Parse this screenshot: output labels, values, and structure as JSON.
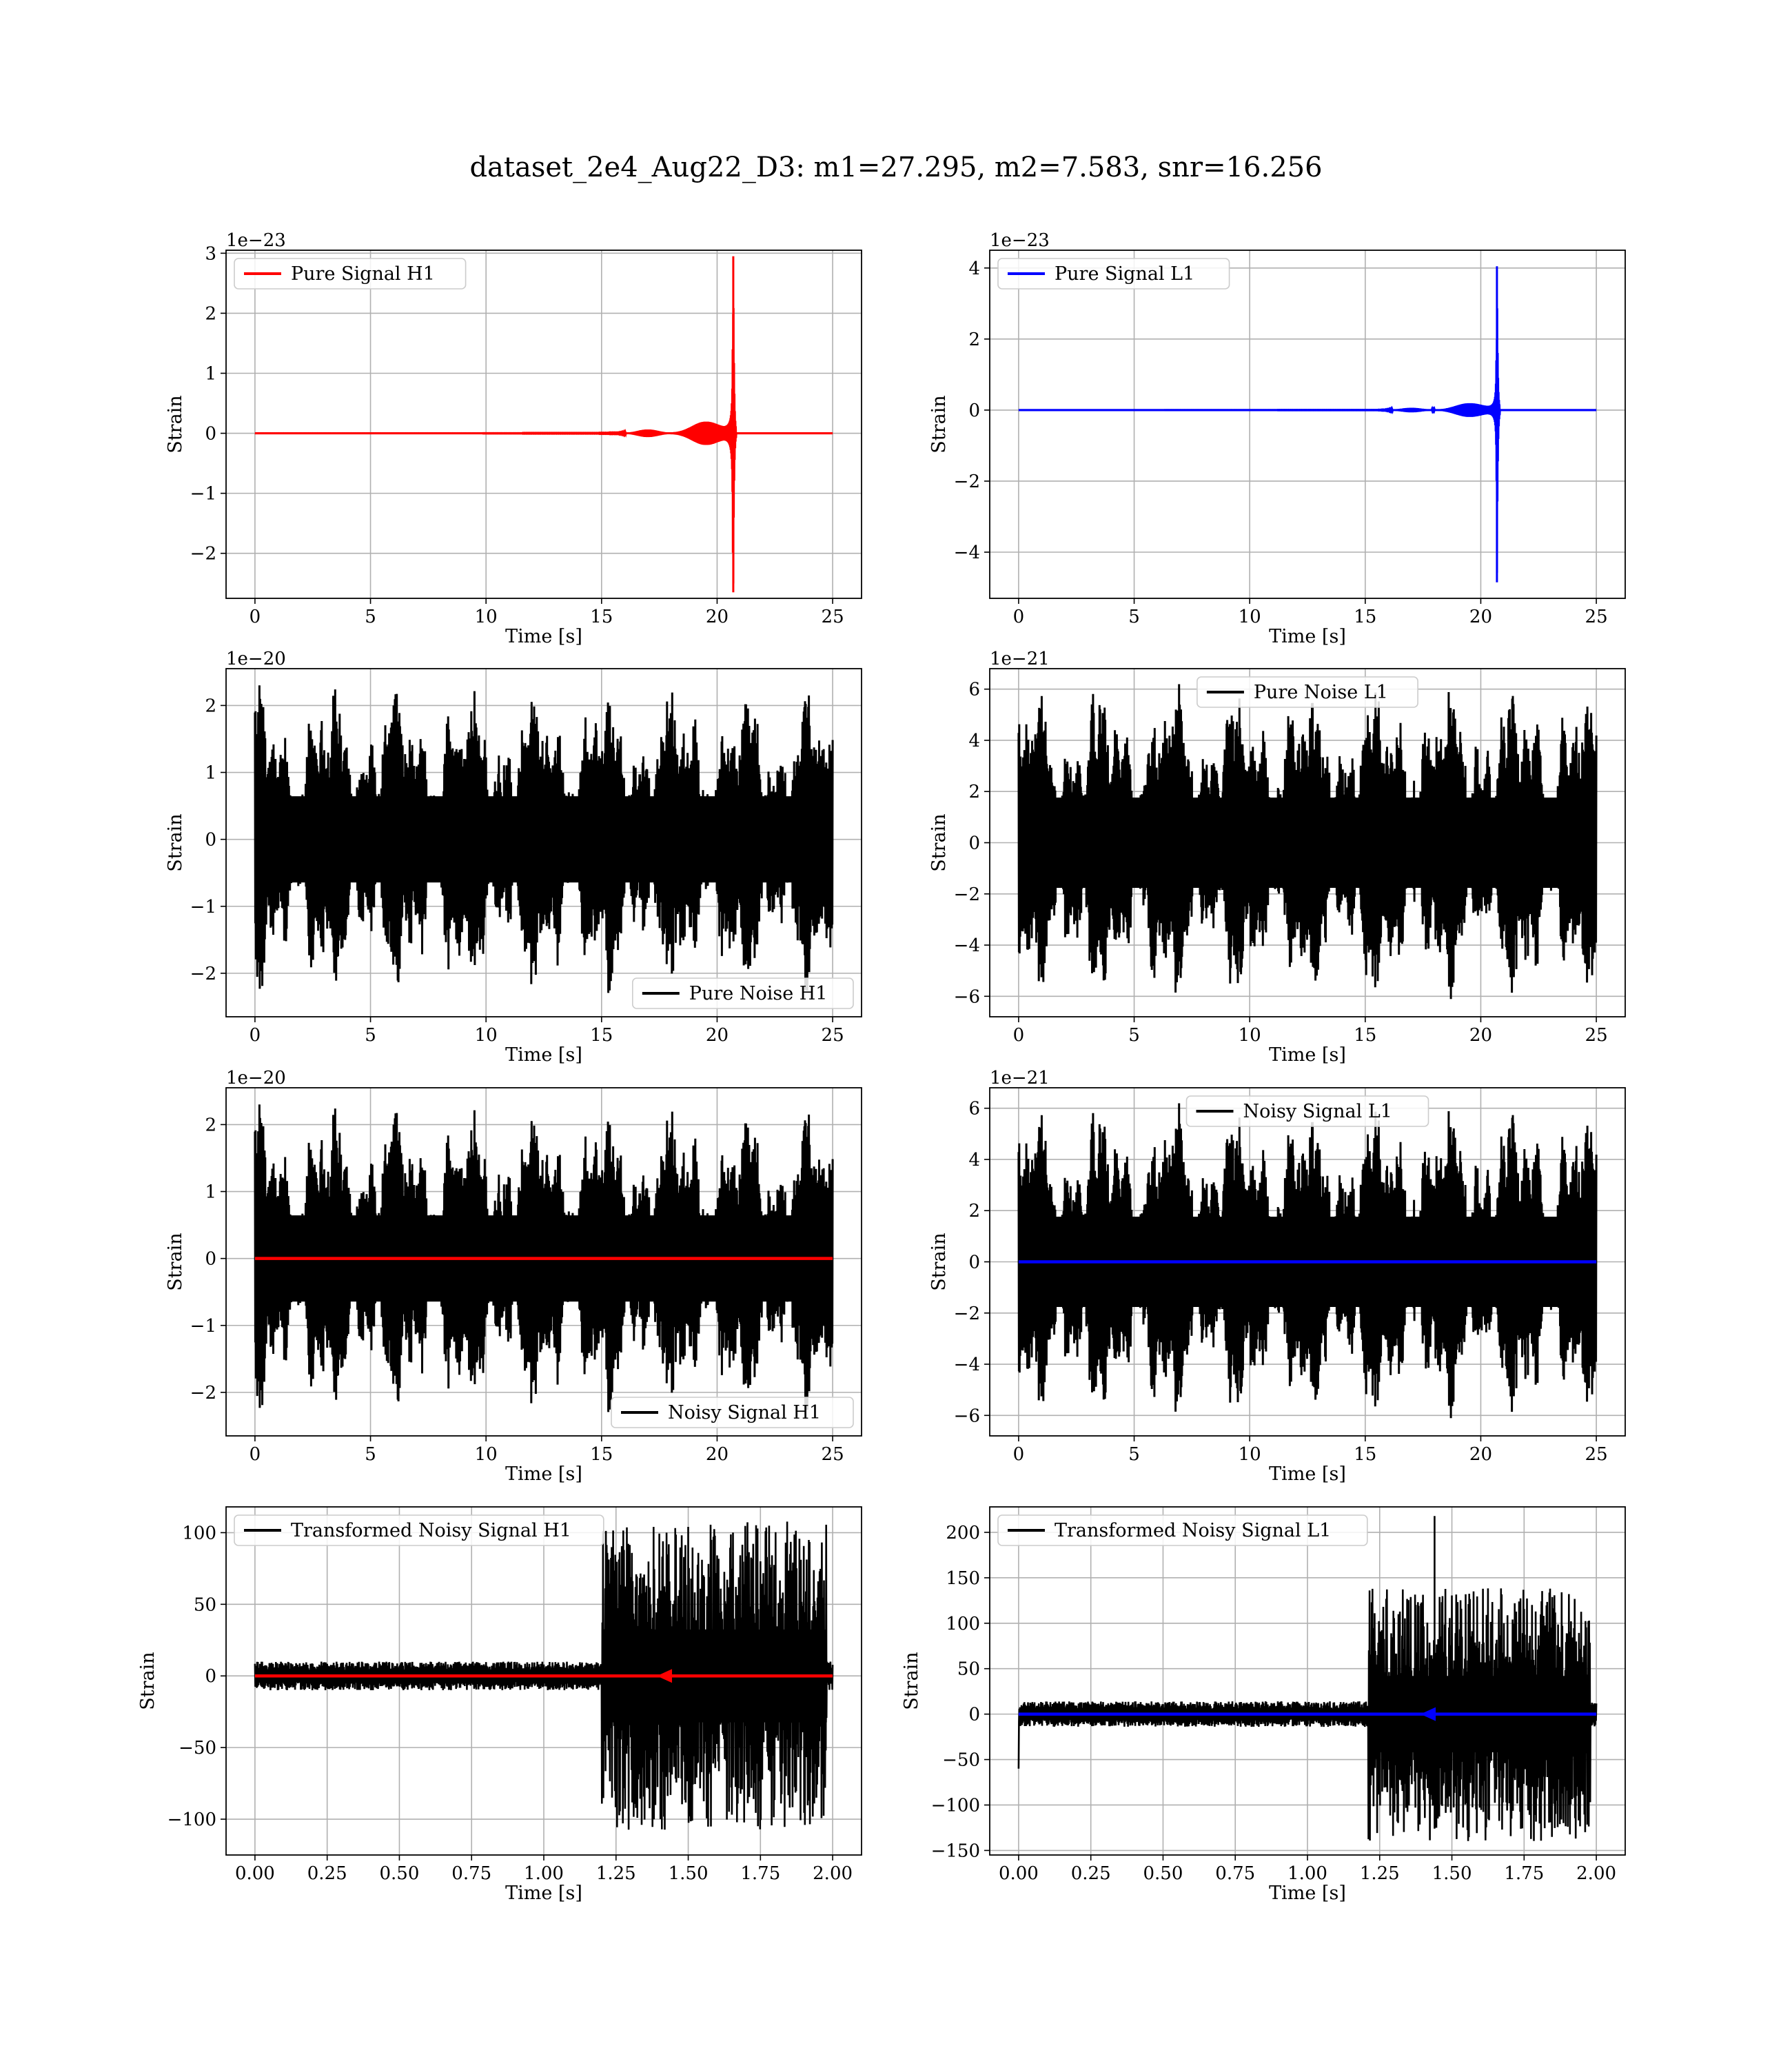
{
  "suptitle": "dataset_2e4_Aug22_D3: m1=27.295, m2=7.583, snr=16.256",
  "colors": {
    "h1": "#ff0000",
    "l1": "#0000ff",
    "noise": "#000000",
    "grid": "#b0b0b0"
  },
  "chart_data": [
    {
      "type": "line",
      "xlabel": "Time [s]",
      "ylabel": "Strain",
      "offset_text": "1e−23",
      "xlim": [
        -1.25,
        26.25
      ],
      "ylim": [
        -2.75,
        3.05
      ],
      "xticks": [
        0,
        5,
        10,
        15,
        20,
        25
      ],
      "xtick_labels": [
        "0",
        "5",
        "10",
        "15",
        "20",
        "25"
      ],
      "yticks": [
        -2,
        -1,
        0,
        1,
        2,
        3
      ],
      "ytick_labels": [
        "−2",
        "−1",
        "0",
        "1",
        "2",
        "3"
      ],
      "legend": {
        "loc": "upper-left",
        "entries": [
          {
            "label": "Pure Signal H1",
            "color": "#ff0000"
          }
        ]
      },
      "series": [
        {
          "name": "Pure Signal H1",
          "color": "#ff0000",
          "kind": "chirp",
          "t_end": 25,
          "merger": 20.7,
          "peak": 2.95,
          "trough": -2.65
        }
      ]
    },
    {
      "type": "line",
      "xlabel": "Time [s]",
      "ylabel": "Strain",
      "offset_text": "1e−23",
      "xlim": [
        -1.25,
        26.25
      ],
      "ylim": [
        -5.3,
        4.5
      ],
      "xticks": [
        0,
        5,
        10,
        15,
        20,
        25
      ],
      "xtick_labels": [
        "0",
        "5",
        "10",
        "15",
        "20",
        "25"
      ],
      "yticks": [
        -4,
        -2,
        0,
        2,
        4
      ],
      "ytick_labels": [
        "−4",
        "−2",
        "0",
        "2",
        "4"
      ],
      "legend": {
        "loc": "upper-left",
        "entries": [
          {
            "label": "Pure Signal L1",
            "color": "#0000ff"
          }
        ]
      },
      "series": [
        {
          "name": "Pure Signal L1",
          "color": "#0000ff",
          "kind": "chirp",
          "t_end": 25,
          "merger": 20.7,
          "peak": 4.05,
          "trough": -4.85
        }
      ]
    },
    {
      "type": "line",
      "xlabel": "Time [s]",
      "ylabel": "Strain",
      "offset_text": "1e−20",
      "xlim": [
        -1.25,
        26.25
      ],
      "ylim": [
        -2.65,
        2.55
      ],
      "xticks": [
        0,
        5,
        10,
        15,
        20,
        25
      ],
      "xtick_labels": [
        "0",
        "5",
        "10",
        "15",
        "20",
        "25"
      ],
      "yticks": [
        -2,
        -1,
        0,
        1,
        2
      ],
      "ytick_labels": [
        "−2",
        "−1",
        "0",
        "1",
        "2"
      ],
      "legend": {
        "loc": "lower-right",
        "entries": [
          {
            "label": "Pure Noise H1",
            "color": "#000000"
          }
        ]
      },
      "series": [
        {
          "name": "Pure Noise H1",
          "color": "#000000",
          "kind": "noise",
          "t_end": 25,
          "amp": 2.3,
          "seed": 11
        }
      ]
    },
    {
      "type": "line",
      "xlabel": "Time [s]",
      "ylabel": "Strain",
      "offset_text": "1e−21",
      "xlim": [
        -1.25,
        26.25
      ],
      "ylim": [
        -6.8,
        6.8
      ],
      "xticks": [
        0,
        5,
        10,
        15,
        20,
        25
      ],
      "xtick_labels": [
        "0",
        "5",
        "10",
        "15",
        "20",
        "25"
      ],
      "yticks": [
        -6,
        -4,
        -2,
        0,
        2,
        4,
        6
      ],
      "ytick_labels": [
        "−6",
        "−4",
        "−2",
        "0",
        "2",
        "4",
        "6"
      ],
      "legend": {
        "loc": "upper-center",
        "entries": [
          {
            "label": "Pure Noise L1",
            "color": "#000000"
          }
        ]
      },
      "series": [
        {
          "name": "Pure Noise L1",
          "color": "#000000",
          "kind": "noise",
          "t_end": 25,
          "amp": 6.3,
          "seed": 23
        }
      ]
    },
    {
      "type": "line",
      "xlabel": "Time [s]",
      "ylabel": "Strain",
      "offset_text": "1e−20",
      "xlim": [
        -1.25,
        26.25
      ],
      "ylim": [
        -2.65,
        2.55
      ],
      "xticks": [
        0,
        5,
        10,
        15,
        20,
        25
      ],
      "xtick_labels": [
        "0",
        "5",
        "10",
        "15",
        "20",
        "25"
      ],
      "yticks": [
        -2,
        -1,
        0,
        1,
        2
      ],
      "ytick_labels": [
        "−2",
        "−1",
        "0",
        "1",
        "2"
      ],
      "legend": {
        "loc": "lower-right",
        "entries": [
          {
            "label": "Noisy Signal H1",
            "color": "#000000"
          }
        ]
      },
      "series": [
        {
          "name": "Noisy Signal H1",
          "color": "#000000",
          "kind": "noise",
          "t_end": 25,
          "amp": 2.3,
          "seed": 11
        },
        {
          "color": "#ff0000",
          "kind": "flat",
          "t_end": 25,
          "value": 0
        }
      ]
    },
    {
      "type": "line",
      "xlabel": "Time [s]",
      "ylabel": "Strain",
      "offset_text": "1e−21",
      "xlim": [
        -1.25,
        26.25
      ],
      "ylim": [
        -6.8,
        6.8
      ],
      "xticks": [
        0,
        5,
        10,
        15,
        20,
        25
      ],
      "xtick_labels": [
        "0",
        "5",
        "10",
        "15",
        "20",
        "25"
      ],
      "yticks": [
        -6,
        -4,
        -2,
        0,
        2,
        4,
        6
      ],
      "ytick_labels": [
        "−6",
        "−4",
        "−2",
        "0",
        "2",
        "4",
        "6"
      ],
      "legend": {
        "loc": "upper-center",
        "entries": [
          {
            "label": "Noisy Signal L1",
            "color": "#000000"
          }
        ]
      },
      "series": [
        {
          "name": "Noisy Signal L1",
          "color": "#000000",
          "kind": "noise",
          "t_end": 25,
          "amp": 6.3,
          "seed": 23
        },
        {
          "color": "#0000ff",
          "kind": "flat",
          "t_end": 25,
          "value": 0
        }
      ]
    },
    {
      "type": "line",
      "xlabel": "Time [s]",
      "ylabel": "Strain",
      "offset_text": "",
      "xlim": [
        -0.1,
        2.1
      ],
      "ylim": [
        -125,
        118
      ],
      "xticks": [
        0,
        0.25,
        0.5,
        0.75,
        1,
        1.25,
        1.5,
        1.75,
        2
      ],
      "xtick_labels": [
        "0.00",
        "0.25",
        "0.50",
        "0.75",
        "1.00",
        "1.25",
        "1.50",
        "1.75",
        "2.00"
      ],
      "yticks": [
        -100,
        -50,
        0,
        50,
        100
      ],
      "ytick_labels": [
        "−100",
        "−50",
        "0",
        "50",
        "100"
      ],
      "legend": {
        "loc": "upper-left",
        "entries": [
          {
            "label": "Transformed Noisy Signal H1",
            "color": "#000000"
          }
        ]
      },
      "series": [
        {
          "name": "Transformed Noisy Signal H1",
          "color": "#000000",
          "kind": "burst",
          "t_end": 2.0,
          "base_amp": 10,
          "burst_start": 1.2,
          "burst_end": 1.98,
          "burst_amp": 108,
          "seed": 5
        },
        {
          "color": "#ff0000",
          "kind": "flat",
          "t_end": 2.0,
          "value": 0,
          "marker_at": 1.42
        }
      ]
    },
    {
      "type": "line",
      "xlabel": "Time [s]",
      "ylabel": "Strain",
      "offset_text": "",
      "xlim": [
        -0.1,
        2.1
      ],
      "ylim": [
        -155,
        228
      ],
      "xticks": [
        0,
        0.25,
        0.5,
        0.75,
        1,
        1.25,
        1.5,
        1.75,
        2
      ],
      "xtick_labels": [
        "0.00",
        "0.25",
        "0.50",
        "0.75",
        "1.00",
        "1.25",
        "1.50",
        "1.75",
        "2.00"
      ],
      "yticks": [
        -150,
        -100,
        -50,
        0,
        50,
        100,
        150,
        200
      ],
      "ytick_labels": [
        "−150",
        "−100",
        "−50",
        "0",
        "50",
        "100",
        "150",
        "200"
      ],
      "legend": {
        "loc": "upper-left",
        "entries": [
          {
            "label": "Transformed Noisy Signal L1",
            "color": "#000000"
          }
        ]
      },
      "series": [
        {
          "name": "Transformed Noisy Signal L1",
          "color": "#000000",
          "kind": "burst",
          "t_end": 2.0,
          "base_amp": 14,
          "burst_start": 1.21,
          "burst_end": 1.98,
          "burst_amp": 140,
          "spike": 218,
          "start_dip": -60,
          "seed": 9
        },
        {
          "color": "#0000ff",
          "kind": "flat",
          "t_end": 2.0,
          "value": 0,
          "marker_at": 1.42
        }
      ]
    }
  ]
}
